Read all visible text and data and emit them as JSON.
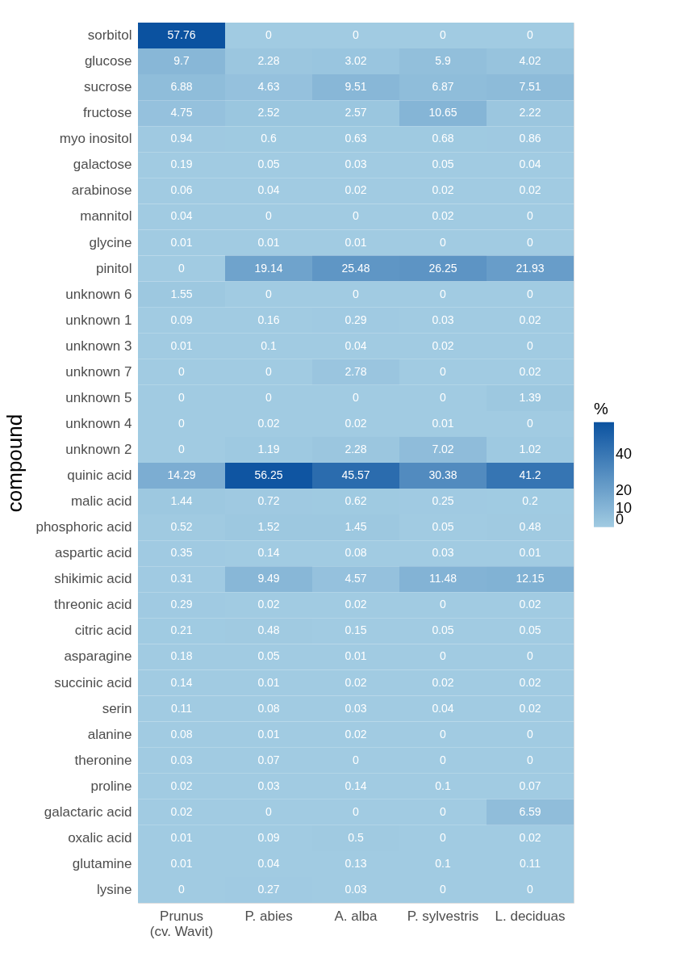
{
  "chart_data": {
    "type": "heatmap",
    "ylabel": "compound",
    "clabel": "%",
    "categories": [
      "Prunus\n(cv. Wavit)",
      "P. abies",
      "A. alba",
      "P. sylvestris",
      "L. deciduas"
    ],
    "y_categories": [
      "sorbitol",
      "glucose",
      "sucrose",
      "fructose",
      "myo inositol",
      "galactose",
      "arabinose",
      "mannitol",
      "glycine",
      "pinitol",
      "unknown 6",
      "unknown 1",
      "unknown 3",
      "unknown 7",
      "unknown 5",
      "unknown 4",
      "unknown 2",
      "quinic acid",
      "malic acid",
      "phosphoric acid",
      "aspartic acid",
      "shikimic acid",
      "threonic acid",
      "citric acid",
      "asparagine",
      "succinic acid",
      "serin",
      "alanine",
      "theronine",
      "proline",
      "galactaric acid",
      "oxalic acid",
      "glutamine",
      "lysine"
    ],
    "cells": [
      [
        57.76,
        0,
        0,
        0,
        0
      ],
      [
        9.7,
        2.28,
        3.02,
        5.9,
        4.02
      ],
      [
        6.88,
        4.63,
        9.51,
        6.87,
        7.51
      ],
      [
        4.75,
        2.52,
        2.57,
        10.65,
        2.22
      ],
      [
        0.94,
        0.6,
        0.63,
        0.68,
        0.86
      ],
      [
        0.19,
        0.05,
        0.03,
        0.05,
        0.04
      ],
      [
        0.06,
        0.04,
        0.02,
        0.02,
        0.02
      ],
      [
        0.04,
        0,
        0,
        0.02,
        0
      ],
      [
        0.01,
        0.01,
        0.01,
        0,
        0
      ],
      [
        0,
        19.14,
        25.48,
        26.25,
        21.93
      ],
      [
        1.55,
        0,
        0,
        0,
        0
      ],
      [
        0.09,
        0.16,
        0.29,
        0.03,
        0.02
      ],
      [
        0.01,
        0.1,
        0.04,
        0.02,
        0
      ],
      [
        0,
        0,
        2.78,
        0,
        0.02
      ],
      [
        0,
        0,
        0,
        0,
        1.39
      ],
      [
        0,
        0.02,
        0.02,
        0.01,
        0
      ],
      [
        0,
        1.19,
        2.28,
        7.02,
        1.02
      ],
      [
        14.29,
        56.25,
        45.57,
        30.38,
        41.2
      ],
      [
        1.44,
        0.72,
        0.62,
        0.25,
        0.2
      ],
      [
        0.52,
        1.52,
        1.45,
        0.05,
        0.48
      ],
      [
        0.35,
        0.14,
        0.08,
        0.03,
        0.01
      ],
      [
        0.31,
        9.49,
        4.57,
        11.48,
        12.15
      ],
      [
        0.29,
        0.02,
        0.02,
        0,
        0.02
      ],
      [
        0.21,
        0.48,
        0.15,
        0.05,
        0.05
      ],
      [
        0.18,
        0.05,
        0.01,
        0,
        0
      ],
      [
        0.14,
        0.01,
        0.02,
        0.02,
        0.02
      ],
      [
        0.11,
        0.08,
        0.03,
        0.04,
        0.02
      ],
      [
        0.08,
        0.01,
        0.02,
        0,
        0
      ],
      [
        0.03,
        0.07,
        0,
        0,
        0
      ],
      [
        0.02,
        0.03,
        0.14,
        0.1,
        0.07
      ],
      [
        0.02,
        0,
        0,
        0,
        6.59
      ],
      [
        0.01,
        0.09,
        0.5,
        0,
        0.02
      ],
      [
        0.01,
        0.04,
        0.13,
        0.1,
        0.11
      ],
      [
        0,
        0.27,
        0.03,
        0,
        0
      ]
    ],
    "data_labels": true,
    "clim": [
      0,
      57.76
    ],
    "cticks": [
      0,
      10,
      20,
      40
    ],
    "grid": false
  }
}
